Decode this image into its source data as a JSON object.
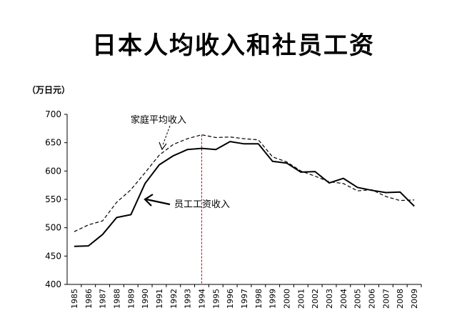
{
  "chart_data": {
    "type": "line",
    "title": "日本人均收入和社员工资",
    "ylabel": "（万日元）",
    "xlabel": "",
    "ylim": [
      400,
      700
    ],
    "yticks": [
      400,
      450,
      500,
      550,
      600,
      650,
      700
    ],
    "x": [
      "1985",
      "1986",
      "1987",
      "1988",
      "1989",
      "1990",
      "1991",
      "1992",
      "1993",
      "1994",
      "1995",
      "1996",
      "1997",
      "1998",
      "1999",
      "2000",
      "2001",
      "2002",
      "2003",
      "2004",
      "2005",
      "2006",
      "2007",
      "2008",
      "2009"
    ],
    "series": [
      {
        "name": "家庭平均收入",
        "style": "dashed",
        "values": [
          493,
          505,
          512,
          545,
          567,
          597,
          628,
          647,
          657,
          664,
          659,
          660,
          657,
          655,
          625,
          616,
          600,
          591,
          581,
          578,
          565,
          567,
          555,
          548,
          549
        ]
      },
      {
        "name": "员工工资收入",
        "style": "solid",
        "values": [
          467,
          468,
          488,
          518,
          523,
          578,
          611,
          627,
          638,
          640,
          638,
          652,
          648,
          648,
          617,
          614,
          598,
          599,
          579,
          587,
          571,
          566,
          562,
          563,
          538
        ]
      }
    ],
    "reference_line": {
      "x": "1994",
      "color": "#cc0000",
      "style": "dashed"
    },
    "annotations": [
      "家庭平均收入",
      "员工工资收入"
    ],
    "grid": false
  },
  "colors": {
    "line": "#000000",
    "reference": "#cc0000"
  }
}
